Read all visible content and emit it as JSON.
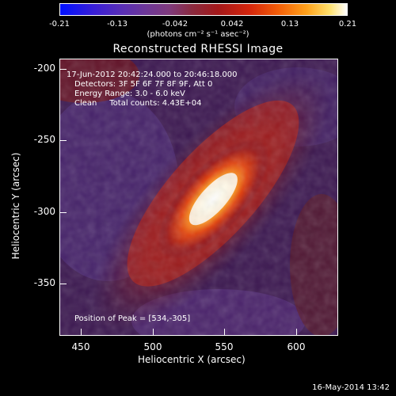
{
  "colorbar": {
    "ticks": [
      "-0.21",
      "-0.13",
      "-0.042",
      "0.042",
      "0.13",
      "0.21"
    ],
    "unit_label": "(photons cm⁻² s⁻¹ asec⁻²)"
  },
  "title": "Reconstructed RHESSI Image",
  "annotations": {
    "time_range": "17-Jun-2012 20:42:24.000 to 20:46:18.000",
    "detectors": "Detectors: 3F 5F 6F 7F 8F 9F, Att 0",
    "energy": "Energy Range: 3.0 - 6.0 keV",
    "clean": "Clean     Total counts: 4.43E+04",
    "peak": "Position of Peak = [534,-305]"
  },
  "axes": {
    "y_label": "Heliocentric Y (arcsec)",
    "x_label": "Heliocentric X (arcsec)",
    "y_ticks": [
      "-200",
      "-250",
      "-300",
      "-350"
    ],
    "x_ticks": [
      "450",
      "500",
      "550",
      "600"
    ]
  },
  "footer_date": "16-May-2014 13:42",
  "colors": {
    "background": "#000000",
    "low": "#0010ff",
    "mid": "#a3181a",
    "high": "#ffffff"
  }
}
